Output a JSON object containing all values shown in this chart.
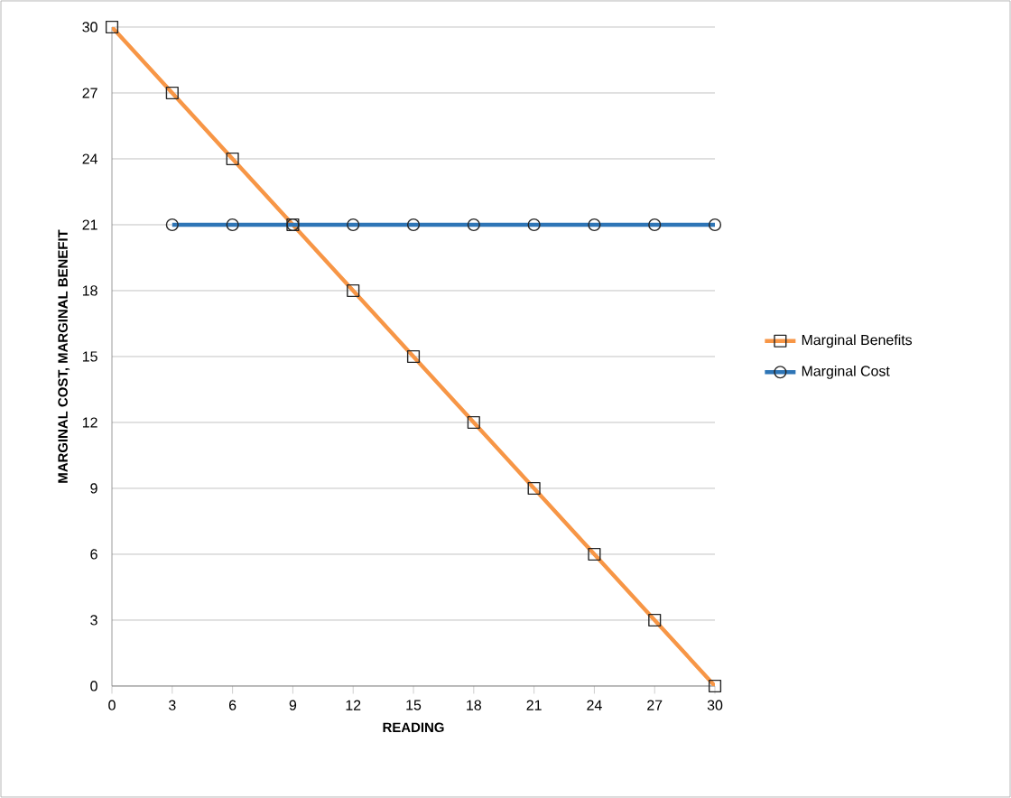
{
  "chart_data": {
    "type": "line",
    "xlabel": "READING",
    "ylabel": "MARGINAL  COST, MARGINAL  BENEFIT",
    "xlim": [
      0,
      30
    ],
    "xticks": [
      0,
      3,
      6,
      9,
      12,
      15,
      18,
      21,
      24,
      27,
      30
    ],
    "ylim": [
      0,
      30
    ],
    "yticks": [
      0,
      3,
      6,
      9,
      12,
      15,
      18,
      21,
      24,
      27,
      30
    ],
    "grid": "y",
    "legend": "right",
    "line_style": "solid",
    "series": [
      {
        "name": "Marginal Benefits",
        "color": "#f79646",
        "marker": "square",
        "x": [
          0,
          3,
          6,
          9,
          12,
          15,
          18,
          21,
          24,
          27,
          30
        ],
        "values": [
          30,
          27,
          24,
          21,
          18,
          15,
          12,
          9,
          6,
          3,
          0
        ]
      },
      {
        "name": "Marginal Cost",
        "color": "#2e75b6",
        "marker": "circle",
        "x": [
          3,
          6,
          9,
          12,
          15,
          18,
          21,
          24,
          27,
          30
        ],
        "values": [
          21,
          21,
          21,
          21,
          21,
          21,
          21,
          21,
          21,
          21
        ]
      }
    ]
  }
}
